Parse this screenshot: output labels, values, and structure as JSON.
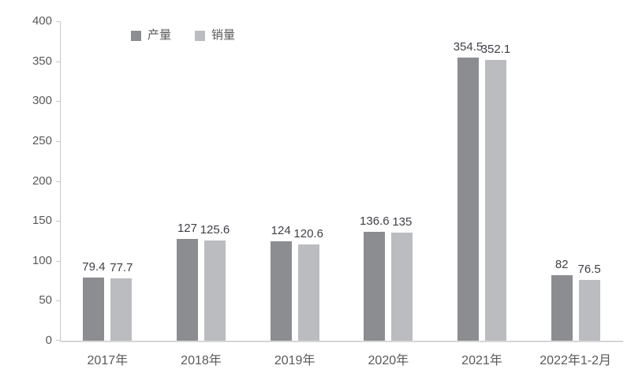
{
  "chart_data": {
    "type": "bar",
    "title": "",
    "categories": [
      "2017年",
      "2018年",
      "2019年",
      "2020年",
      "2021年",
      "2022年1-2月"
    ],
    "series": [
      {
        "name": "产量",
        "color": "#8C8D91",
        "values": [
          79.4,
          127,
          124,
          136.6,
          354.5,
          82
        ]
      },
      {
        "name": "销量",
        "color": "#BBBCBF",
        "values": [
          77.7,
          125.6,
          120.6,
          135,
          352.1,
          76.5
        ]
      }
    ],
    "ylim": [
      0,
      400
    ],
    "y_ticks": [
      0,
      50,
      100,
      150,
      200,
      250,
      300,
      350,
      400
    ],
    "grid": "off",
    "legend_position": "top-left-inside",
    "colors": {
      "data_label": "#3F4047",
      "axis_text": "#595959",
      "axis_line": "#C9C9C9",
      "baseline": "#D6D6D6",
      "background": "#FFFFFF"
    }
  }
}
